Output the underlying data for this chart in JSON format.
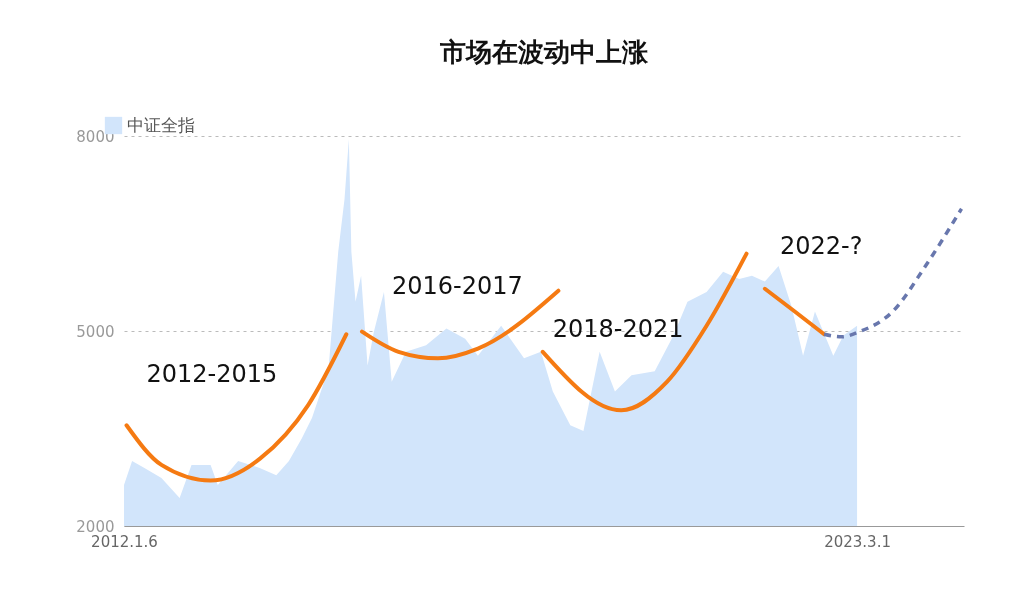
{
  "chart_data": {
    "type": "area",
    "title": "市场在波动中上涨",
    "legend": "top left",
    "grid": "y",
    "line_style": "solid",
    "xlim": [
      "2012-01-06",
      "2024-10-15"
    ],
    "xticks": [
      {
        "value": "2012-01-06",
        "label": "2012.1.6"
      },
      {
        "value": "2023-03-01",
        "label": "2023.3.1"
      }
    ],
    "ylim": [
      2000,
      8000
    ],
    "yticks": [
      2000,
      5000,
      8000
    ],
    "series": [
      {
        "name": "中证全指",
        "color": "#d2e5fb",
        "x": [
          "2012-01-06",
          "2012-02-20",
          "2012-05-01",
          "2012-08-01",
          "2012-11-10",
          "2013-01-15",
          "2013-05-01",
          "2013-06-10",
          "2013-10-01",
          "2014-02-01",
          "2014-05-01",
          "2014-07-10",
          "2014-09-20",
          "2014-11-15",
          "2015-02-15",
          "2015-04-10",
          "2015-05-15",
          "2015-06-08",
          "2015-06-22",
          "2015-07-15",
          "2015-08-15",
          "2015-09-20",
          "2015-10-25",
          "2015-12-20",
          "2016-02-01",
          "2016-04-20",
          "2016-08-10",
          "2016-12-01",
          "2017-03-15",
          "2017-05-25",
          "2017-10-01",
          "2018-02-05",
          "2018-05-10",
          "2018-07-15",
          "2018-10-20",
          "2019-01-01",
          "2019-04-01",
          "2019-06-25",
          "2019-09-25",
          "2020-02-01",
          "2020-05-15",
          "2020-08-01",
          "2020-11-15",
          "2021-02-15",
          "2021-05-15",
          "2021-07-25",
          "2021-10-05",
          "2021-12-20",
          "2022-03-01",
          "2022-05-05",
          "2022-07-10",
          "2022-10-20",
          "2022-12-15",
          "2023-03-01"
        ],
        "values": [
          2630,
          3000,
          2890,
          2740,
          2430,
          2940,
          2940,
          2630,
          3000,
          2890,
          2780,
          3000,
          3350,
          3660,
          4420,
          6220,
          7030,
          7950,
          6220,
          5450,
          5850,
          4470,
          4990,
          5600,
          4220,
          4680,
          4780,
          5040,
          4880,
          4620,
          5080,
          4580,
          4680,
          4070,
          3550,
          3460,
          4680,
          4070,
          4320,
          4380,
          4930,
          5450,
          5600,
          5910,
          5800,
          5850,
          5760,
          6000,
          5390,
          4620,
          5300,
          4620,
          4930,
          5080
        ]
      },
      {
        "type": "line",
        "color": "#f57a12",
        "x": [
          "2012-01-20",
          "2012-08-01",
          "2013-05-01",
          "2014-02-01",
          "2014-10-25",
          "2015-05-25"
        ],
        "values": [
          3550,
          2940,
          2700,
          3040,
          3860,
          4950
        ]
      },
      {
        "type": "line",
        "color": "#f57a12",
        "x": [
          "2015-08-20",
          "2016-03-10",
          "2016-10-15",
          "2017-05-25",
          "2018-08-15"
        ],
        "values": [
          4990,
          4680,
          4580,
          4730,
          5620
        ]
      },
      {
        "type": "line",
        "color": "#f57a12",
        "x": [
          "2018-05-20",
          "2019-07-30",
          "2020-04-10",
          "2020-11-15",
          "2021-06-25"
        ],
        "values": [
          4680,
          3780,
          4220,
          5080,
          6190
        ]
      },
      {
        "type": "line",
        "color": "#f57a12",
        "x": [
          "2021-10-05",
          "2022-03-20",
          "2022-08-30"
        ],
        "values": [
          5650,
          5300,
          4950
        ]
      },
      {
        "type": "line",
        "line_style": "dashed",
        "color": "#6877ad",
        "x": [
          "2022-08-30",
          "2022-12-05",
          "2023-03-15",
          "2023-09-15",
          "2024-03-15",
          "2024-10-01"
        ],
        "values": [
          4950,
          4910,
          4990,
          5300,
          6000,
          6880
        ]
      }
    ],
    "annotations": [
      "2012-2015",
      "2016-2017",
      "2018-2021",
      "2022-?"
    ]
  }
}
